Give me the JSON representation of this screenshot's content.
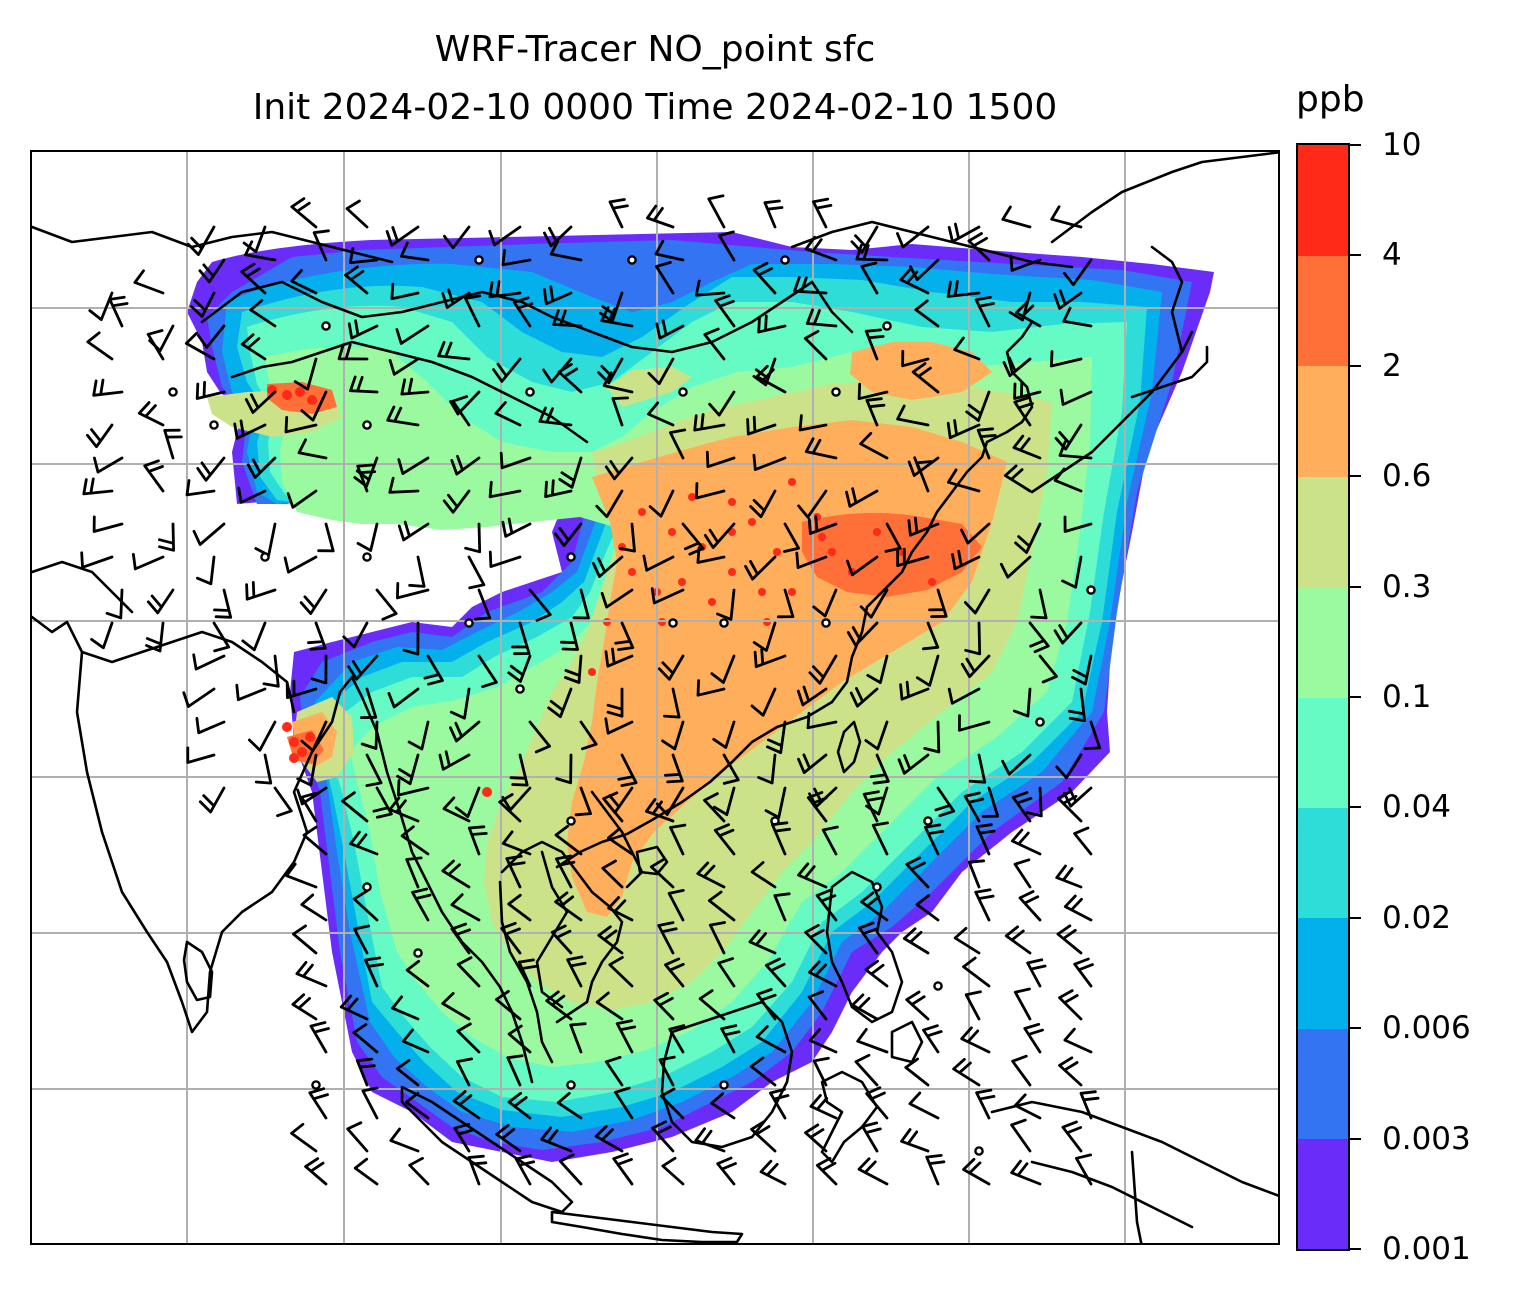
{
  "title": {
    "line1": "WRF-Tracer NO_point sfc",
    "line2": "Init 2024-02-10 0000 Time 2024-02-10 1500"
  },
  "colorbar": {
    "unit": "ppb",
    "ticks": [
      "0.001",
      "0.003",
      "0.006",
      "0.02",
      "0.04",
      "0.1",
      "0.3",
      "0.6",
      "2",
      "4",
      "10"
    ],
    "colors": [
      "#6a2cf8",
      "#3374f2",
      "#04b0ec",
      "#2edcd8",
      "#66fbc4",
      "#9bfaa0",
      "#cbe288",
      "#ffae5c",
      "#ff6f38",
      "#ff2a17"
    ]
  },
  "map": {
    "gridlines": true,
    "gridline_color": "#b0b0b0",
    "coastline_color": "#000000",
    "ocean_color": "#ffffff",
    "legend": "colorbar-right"
  }
}
